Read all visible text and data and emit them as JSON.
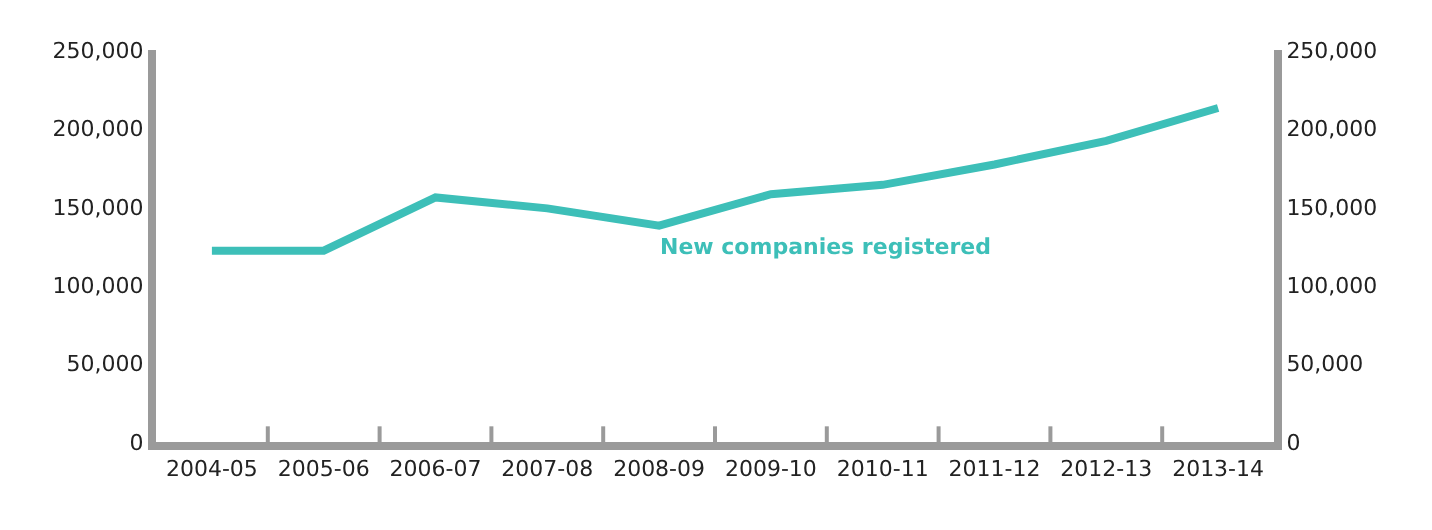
{
  "chart_data": {
    "type": "line",
    "categories": [
      "2004-05",
      "2005-06",
      "2006-07",
      "2007-08",
      "2008-09",
      "2009-10",
      "2010-11",
      "2011-12",
      "2012-13",
      "2013-14"
    ],
    "series": [
      {
        "name": "New companies registered",
        "color": "#3dbfb8",
        "values": [
          122000,
          122000,
          156000,
          149000,
          138000,
          158000,
          164000,
          177000,
          192000,
          213000
        ]
      }
    ],
    "ylim": [
      0,
      250000
    ],
    "yticks": [
      0,
      {
        "value": 50000,
        "label": "50,000"
      },
      {
        "value": 100000,
        "label": "100,000"
      },
      {
        "value": 150000,
        "label": "150,000"
      },
      {
        "value": 200000,
        "label": "200,000"
      },
      {
        "value": 250000,
        "label": "250,000"
      }
    ],
    "y2lim": [
      0,
      250000
    ],
    "y2ticks": [
      0,
      {
        "value": 50000,
        "label": "50,000"
      },
      {
        "value": 100000,
        "label": "100,000"
      },
      {
        "value": 150000,
        "label": "150,000"
      },
      {
        "value": 200000,
        "label": "200,000"
      },
      {
        "value": 250000,
        "label": "250,000"
      }
    ],
    "legend": false,
    "marker": "none",
    "line_style": "solid"
  }
}
